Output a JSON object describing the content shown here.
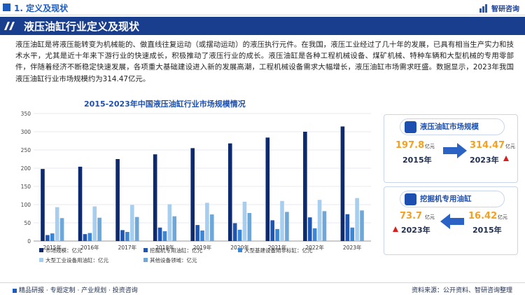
{
  "header": {
    "section": "1. 定义及现状",
    "brand": "智研咨询"
  },
  "banner": {
    "title": "液压油缸行业定义及现状"
  },
  "intro": "液压油缸是将液压能转变为机械能的、做直线往复运动（或摆动运动）的液压执行元件。在我国，液压工业经过了几十年的发展，已具有相当生产实力和技术水平，尤其是近十年来下游行业的快速成长，积极推动了液压行业的成长。液压油缸是各种工程机械设备、煤矿机械、特种车辆和大型机械的专用零部件，伴随着经济不断稳定快速发展，各项重大基础建设进入新的发展高潮，工程机械设备需求大幅增长，液压油缸市场需求旺盛。数据显示，2023年我国液压油缸行业市场规模约为314.47亿元。",
  "chart_data": {
    "type": "bar",
    "title": "2015-2023年中国液压油缸行业市场规模情况",
    "categories": [
      "2015年",
      "2016年",
      "2017年",
      "2018年",
      "2019年",
      "2020年",
      "2021年",
      "2022年",
      "2023年"
    ],
    "ylim": [
      0,
      350
    ],
    "yticks": [
      0,
      50,
      100,
      150,
      200,
      250,
      300,
      350
    ],
    "grid": true,
    "legend": "bottom",
    "series": [
      {
        "name": "市场规模：亿元",
        "color": "#0d2a6e",
        "values": [
          197.8,
          204,
          225,
          238,
          255,
          268,
          284,
          300,
          314.47
        ]
      },
      {
        "name": "挖掘机专用油缸：亿元",
        "color": "#1f56b3",
        "values": [
          16.42,
          19,
          30,
          37,
          44,
          49,
          57,
          65,
          73.7
        ]
      },
      {
        "name": "大型基建设备用非标缸：亿元",
        "color": "#3b86d6",
        "values": [
          21,
          22,
          25,
          27,
          29,
          31,
          33,
          35,
          37
        ]
      },
      {
        "name": "大型工业设备用油缸：亿元",
        "color": "#a7cdef",
        "values": [
          93,
          95,
          99,
          101,
          105,
          108,
          110,
          113,
          118
        ]
      },
      {
        "name": "其他设备领域：亿元",
        "color": "#6fa8d8",
        "values": [
          63,
          64,
          66,
          68,
          73,
          77,
          80,
          82,
          84
        ]
      }
    ]
  },
  "card1": {
    "title": "液压油缸市场规模",
    "from_value": "197.8",
    "from_unit": "亿元",
    "from_year": "2015年",
    "to_value": "314.47",
    "to_unit": "亿元",
    "to_year": "2023年"
  },
  "card2": {
    "title": "挖掘机专用油缸",
    "from_value": "73.7",
    "from_unit": "亿元",
    "from_year": "2023年",
    "to_value": "16.42",
    "to_unit": "亿元",
    "to_year": "2015年"
  },
  "footer": {
    "left": "精品研报 · 专题定制 · 产业规划 · 投资咨询",
    "source": "资料来源：公开资料、智研咨询整理"
  },
  "colors": {
    "accent": "#1a3e8e",
    "highlight": "#f2a122",
    "up_arrow": "#d81e1e"
  }
}
